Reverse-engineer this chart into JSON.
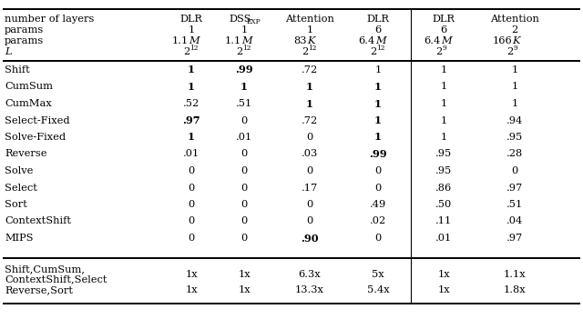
{
  "col_headers_line1": [
    "DLR",
    "DSS_EXP",
    "ATTENTION",
    "DLR",
    "DLR",
    "ATTENTION"
  ],
  "col_headers_line2": [
    "1",
    "1",
    "1",
    "6",
    "6",
    "2"
  ],
  "col_headers_line3": [
    "1.1M",
    "1.1M",
    "83K",
    "6.4M",
    "6.4M",
    "166K"
  ],
  "col_headers_line4": [
    "2^12",
    "2^12",
    "2^12",
    "2^12",
    "2^9",
    "2^9"
  ],
  "row_labels": [
    "Shift",
    "CumSum",
    "CumMax",
    "Select-Fixed",
    "Solve-Fixed",
    "Reverse",
    "Solve",
    "Select",
    "Sort",
    "ContextShift",
    "MIPS"
  ],
  "data_rows": [
    [
      "1",
      ".99",
      ".72",
      "1",
      "1",
      "1"
    ],
    [
      "1",
      "1",
      "1",
      "1",
      "1",
      "1"
    ],
    [
      ".52",
      ".51",
      "1",
      "1",
      "1",
      "1"
    ],
    [
      ".97",
      "0",
      ".72",
      "1",
      "1",
      ".94"
    ],
    [
      "1",
      ".01",
      "0",
      "1",
      "1",
      ".95"
    ],
    [
      ".01",
      "0",
      ".03",
      ".99",
      ".95",
      ".28"
    ],
    [
      "0",
      "0",
      "0",
      "0",
      ".95",
      "0"
    ],
    [
      "0",
      "0",
      ".17",
      "0",
      ".86",
      ".97"
    ],
    [
      "0",
      "0",
      "0",
      ".49",
      ".50",
      ".51"
    ],
    [
      "0",
      "0",
      "0",
      ".02",
      ".11",
      ".04"
    ],
    [
      "0",
      "0",
      ".90",
      "0",
      ".01",
      ".97"
    ]
  ],
  "bold_data": {
    "0": [
      0,
      1
    ],
    "1": [
      0,
      1,
      2,
      3
    ],
    "2": [
      2,
      3
    ],
    "3": [
      0,
      3
    ],
    "4": [
      0,
      3
    ],
    "5": [
      3
    ],
    "10": [
      2
    ]
  },
  "footer_label1a": "Shift,CumSum,",
  "footer_label1b": "ContextShift,Select",
  "footer_label2": "Reverse,Sort",
  "footer_row1": [
    "1x",
    "1x",
    "6.3x",
    "5x",
    "1x",
    "1.1x"
  ],
  "footer_row2": [
    "1x",
    "1x",
    "13.3x",
    "5.4x",
    "1x",
    "1.8x"
  ],
  "bg_color": "#ffffff",
  "fs": 8.2,
  "fs_header": 8.2
}
